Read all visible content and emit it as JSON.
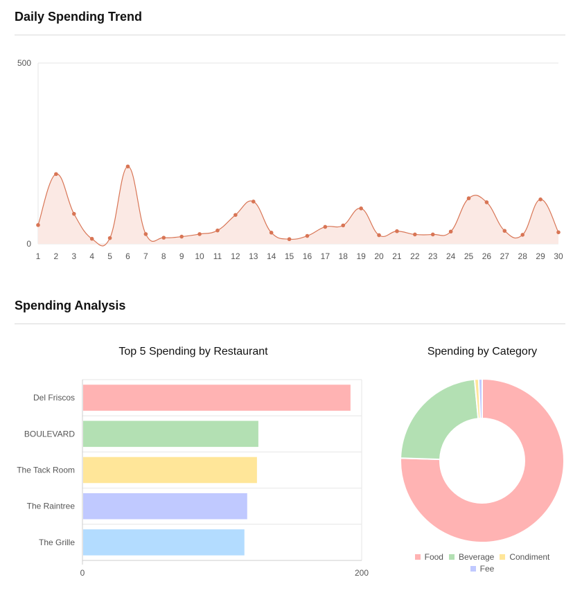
{
  "sections": {
    "trend_title": "Daily Spending Trend",
    "analysis_title": "Spending Analysis"
  },
  "chart_data": [
    {
      "type": "line",
      "x": [
        1,
        2,
        3,
        4,
        5,
        6,
        7,
        8,
        9,
        10,
        11,
        12,
        13,
        14,
        15,
        16,
        17,
        18,
        19,
        20,
        21,
        22,
        23,
        24,
        25,
        26,
        27,
        28,
        29,
        30
      ],
      "series": [
        {
          "values": [
            52,
            193,
            83,
            14,
            16,
            214,
            27,
            17,
            20,
            27,
            37,
            80,
            117,
            31,
            13,
            22,
            47,
            51,
            98,
            24,
            35,
            26,
            26,
            34,
            126,
            115,
            36,
            25,
            123,
            32
          ]
        }
      ],
      "y_ticks": [
        0,
        500
      ],
      "ylim": [
        0,
        500
      ],
      "color": "#d87555",
      "fill": "#fbe9e4"
    },
    {
      "type": "bar",
      "title": "Top 5 Spending by Restaurant",
      "orientation": "horizontal",
      "categories": [
        "Del Friscos",
        "BOULEVARD",
        "The Tack Room",
        "The Raintree",
        "The Grille"
      ],
      "values": [
        192,
        126,
        125,
        118,
        116
      ],
      "x_ticks": [
        0,
        200
      ],
      "xlim": [
        0,
        200
      ],
      "colors": [
        "#ffb3b3",
        "#b3e0b3",
        "#ffe699",
        "#c0c9ff",
        "#b3dcff"
      ]
    },
    {
      "type": "pie",
      "title": "Spending by Category",
      "labels": [
        "Food",
        "Beverage",
        "Condiment",
        "Fee"
      ],
      "values": [
        75.5,
        23.0,
        0.8,
        0.7
      ],
      "colors": [
        "#ffb3b3",
        "#b3e0b3",
        "#ffe699",
        "#c0c9ff"
      ],
      "legend_position": "bottom"
    }
  ]
}
